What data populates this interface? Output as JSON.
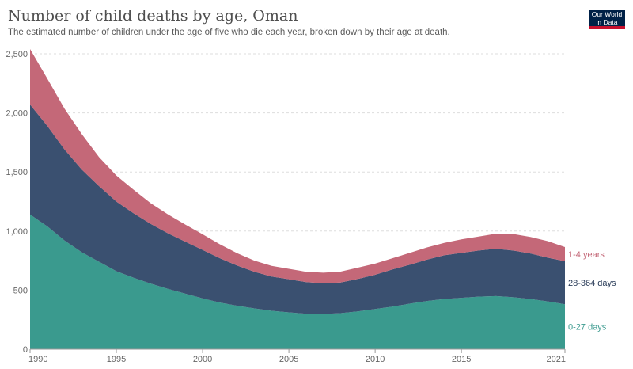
{
  "header": {
    "title": "Number of child deaths by age, Oman",
    "subtitle": "The estimated number of children under the age of five who die each year, broken down by their age at death."
  },
  "logo": {
    "line1": "Our World",
    "line2": "in Data",
    "bg_color": "#002147",
    "accent_color": "#c8102e"
  },
  "chart_data": {
    "type": "area",
    "stacked": true,
    "title": "Number of child deaths by age, Oman",
    "x": [
      1990,
      1991,
      1992,
      1993,
      1994,
      1995,
      1996,
      1997,
      1998,
      1999,
      2000,
      2001,
      2002,
      2003,
      2004,
      2005,
      2006,
      2007,
      2008,
      2009,
      2010,
      2011,
      2012,
      2013,
      2014,
      2015,
      2016,
      2017,
      2018,
      2019,
      2020,
      2021
    ],
    "series": [
      {
        "name": "0-27 days",
        "color": "#3a9a8e",
        "values": [
          1140,
          1040,
          920,
          820,
          740,
          660,
          605,
          555,
          510,
          470,
          430,
          395,
          368,
          345,
          325,
          312,
          300,
          298,
          305,
          320,
          340,
          360,
          385,
          408,
          425,
          435,
          445,
          450,
          440,
          425,
          405,
          380
        ]
      },
      {
        "name": "28-364 days",
        "color": "#3a5070",
        "values": [
          930,
          850,
          770,
          700,
          640,
          590,
          545,
          505,
          470,
          440,
          410,
          375,
          340,
          310,
          290,
          280,
          268,
          260,
          260,
          275,
          290,
          315,
          330,
          350,
          370,
          380,
          390,
          400,
          395,
          385,
          370,
          365
        ]
      },
      {
        "name": "1-4 years",
        "color": "#c46878",
        "values": [
          470,
          400,
          345,
          300,
          245,
          220,
          200,
          175,
          160,
          145,
          133,
          118,
          105,
          95,
          90,
          88,
          87,
          90,
          92,
          95,
          95,
          95,
          100,
          103,
          105,
          115,
          118,
          128,
          140,
          140,
          140,
          120
        ]
      }
    ],
    "xlabel": "",
    "ylabel": "",
    "xlim": [
      1990,
      2021
    ],
    "ylim": [
      0,
      2500
    ],
    "x_ticks": [
      "1990",
      "1995",
      "2000",
      "2005",
      "2010",
      "2015",
      "2021"
    ],
    "y_ticks": [
      "0",
      "500",
      "1,000",
      "1,500",
      "2,000",
      "2,500"
    ],
    "grid": "horizontal-dashed",
    "legend": "right-inline"
  }
}
